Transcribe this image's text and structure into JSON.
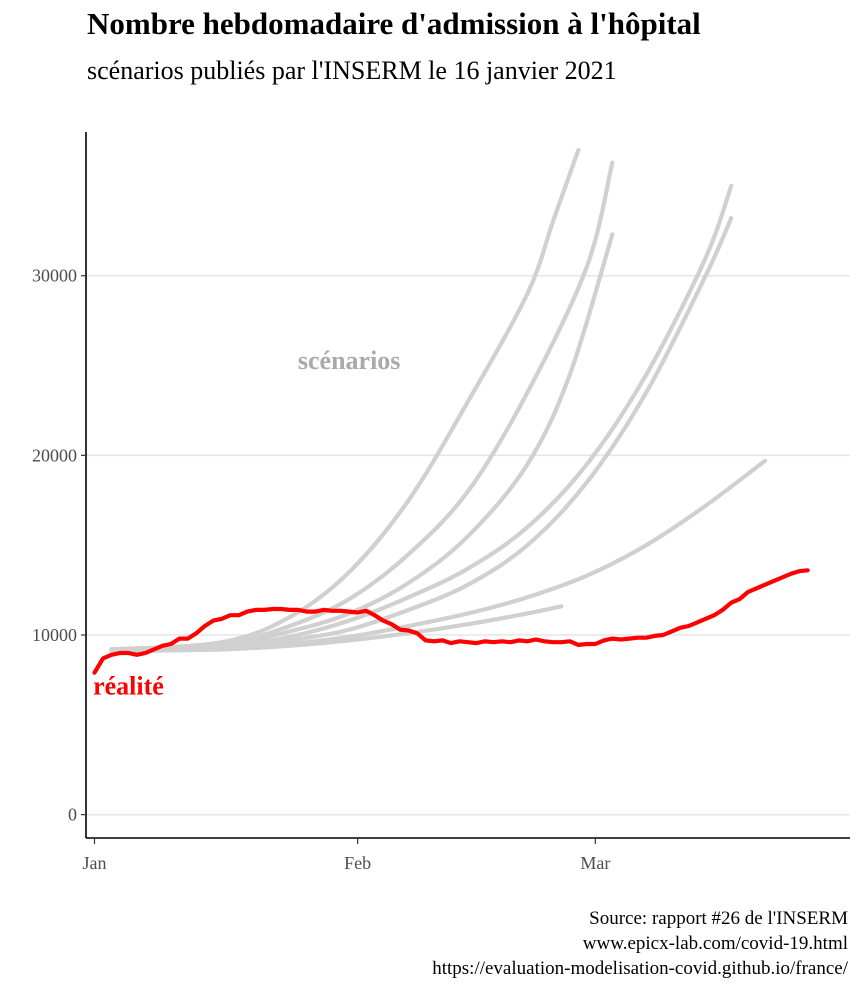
{
  "header": {
    "title": "Nombre hebdomadaire d'admission à l'hôpital",
    "subtitle": "scénarios publiés par l'INSERM le 16 janvier 2021"
  },
  "caption": {
    "line1": "Source: rapport #26 de l'INSERM",
    "line2": "www.epicx-lab.com/covid-19.html",
    "line3": "https://evaluation-modelisation-covid.github.io/france/"
  },
  "colors": {
    "scenario": "#d0d0d0",
    "reality": "#ff0000",
    "scenario_label": "#aaaaaa",
    "grid": "#e6e6e6"
  },
  "chart_data": {
    "type": "line",
    "title": "Nombre hebdomadaire d'admission à l'hôpital",
    "subtitle": "scénarios publiés par l'INSERM le 16 janvier 2021",
    "xlabel": "",
    "ylabel": "",
    "x_unit": "day",
    "xlim": [
      "2020-12-31",
      "2021-03-31"
    ],
    "ylim": [
      -1300,
      38000
    ],
    "x_ticks": [
      {
        "date": "2021-01-01",
        "label": "Jan"
      },
      {
        "date": "2021-02-01",
        "label": "Feb"
      },
      {
        "date": "2021-03-01",
        "label": "Mar"
      }
    ],
    "y_ticks": [
      {
        "value": 0,
        "label": "0"
      },
      {
        "value": 10000,
        "label": "10000"
      },
      {
        "value": 20000,
        "label": "20000"
      },
      {
        "value": 30000,
        "label": "30000"
      }
    ],
    "grid": "horizontal",
    "annotations": [
      {
        "text": "scénarios",
        "date": "2021-01-31",
        "y": 24800
      },
      {
        "text": "réalité",
        "date": "2021-01-05",
        "y": 6700
      }
    ],
    "series": [
      {
        "name": "scénarios",
        "values": [
          [
            "2021-01-03",
            9200
          ],
          [
            "2021-01-16",
            9600
          ],
          [
            "2021-01-24",
            11000
          ],
          [
            "2021-01-31",
            13500
          ],
          [
            "2021-02-07",
            17500
          ],
          [
            "2021-02-14",
            23000
          ],
          [
            "2021-02-21",
            29000
          ],
          [
            "2021-02-24",
            33000
          ],
          [
            "2021-02-27",
            37000
          ]
        ]
      },
      {
        "name": "scénarios",
        "values": [
          [
            "2021-01-03",
            9200
          ],
          [
            "2021-01-16",
            9500
          ],
          [
            "2021-01-24",
            10500
          ],
          [
            "2021-01-31",
            12000
          ],
          [
            "2021-02-07",
            14500
          ],
          [
            "2021-02-14",
            18000
          ],
          [
            "2021-02-21",
            23500
          ],
          [
            "2021-02-28",
            30500
          ],
          [
            "2021-03-03",
            36300
          ]
        ]
      },
      {
        "name": "scénarios",
        "values": [
          [
            "2021-01-03",
            9200
          ],
          [
            "2021-01-16",
            9400
          ],
          [
            "2021-01-24",
            10200
          ],
          [
            "2021-01-31",
            11200
          ],
          [
            "2021-02-07",
            12900
          ],
          [
            "2021-02-14",
            15500
          ],
          [
            "2021-02-21",
            19500
          ],
          [
            "2021-02-26",
            24500
          ],
          [
            "2021-03-03",
            32300
          ]
        ]
      },
      {
        "name": "scénarios",
        "values": [
          [
            "2021-01-03",
            9200
          ],
          [
            "2021-01-16",
            9300
          ],
          [
            "2021-01-24",
            9900
          ],
          [
            "2021-01-31",
            10800
          ],
          [
            "2021-02-07",
            12100
          ],
          [
            "2021-02-14",
            13700
          ],
          [
            "2021-02-21",
            16000
          ],
          [
            "2021-02-28",
            19500
          ],
          [
            "2021-03-07",
            24500
          ],
          [
            "2021-03-14",
            31000
          ],
          [
            "2021-03-17",
            35000
          ]
        ]
      },
      {
        "name": "scénarios",
        "values": [
          [
            "2021-01-03",
            9200
          ],
          [
            "2021-01-16",
            9250
          ],
          [
            "2021-01-24",
            9700
          ],
          [
            "2021-01-31",
            10300
          ],
          [
            "2021-02-07",
            11400
          ],
          [
            "2021-02-14",
            12800
          ],
          [
            "2021-02-21",
            15000
          ],
          [
            "2021-02-28",
            18500
          ],
          [
            "2021-03-07",
            23500
          ],
          [
            "2021-03-14",
            30000
          ],
          [
            "2021-03-17",
            33200
          ]
        ]
      },
      {
        "name": "scénarios",
        "values": [
          [
            "2021-01-03",
            9200
          ],
          [
            "2021-01-16",
            9200
          ],
          [
            "2021-01-24",
            9500
          ],
          [
            "2021-01-31",
            9900
          ],
          [
            "2021-02-07",
            10500
          ],
          [
            "2021-02-14",
            11200
          ],
          [
            "2021-02-21",
            12100
          ],
          [
            "2021-02-28",
            13300
          ],
          [
            "2021-03-07",
            15000
          ],
          [
            "2021-03-14",
            17200
          ],
          [
            "2021-03-21",
            19700
          ]
        ]
      },
      {
        "name": "scénarios",
        "values": [
          [
            "2021-01-03",
            9100
          ],
          [
            "2021-01-16",
            9200
          ],
          [
            "2021-01-24",
            9400
          ],
          [
            "2021-01-31",
            9700
          ],
          [
            "2021-02-07",
            10100
          ],
          [
            "2021-02-14",
            10600
          ],
          [
            "2021-02-21",
            11200
          ],
          [
            "2021-02-25",
            11600
          ]
        ]
      },
      {
        "name": "réalité",
        "values": [
          [
            "2021-01-01",
            7900
          ],
          [
            "2021-01-02",
            8700
          ],
          [
            "2021-01-03",
            8900
          ],
          [
            "2021-01-04",
            9000
          ],
          [
            "2021-01-05",
            9000
          ],
          [
            "2021-01-06",
            8900
          ],
          [
            "2021-01-07",
            9000
          ],
          [
            "2021-01-08",
            9200
          ],
          [
            "2021-01-09",
            9400
          ],
          [
            "2021-01-10",
            9500
          ],
          [
            "2021-01-11",
            9800
          ],
          [
            "2021-01-12",
            9800
          ],
          [
            "2021-01-13",
            10100
          ],
          [
            "2021-01-14",
            10500
          ],
          [
            "2021-01-15",
            10800
          ],
          [
            "2021-01-16",
            10900
          ],
          [
            "2021-01-17",
            11100
          ],
          [
            "2021-01-18",
            11100
          ],
          [
            "2021-01-19",
            11300
          ],
          [
            "2021-01-20",
            11400
          ],
          [
            "2021-01-21",
            11400
          ],
          [
            "2021-01-22",
            11450
          ],
          [
            "2021-01-23",
            11450
          ],
          [
            "2021-01-24",
            11400
          ],
          [
            "2021-01-25",
            11400
          ],
          [
            "2021-01-26",
            11300
          ],
          [
            "2021-01-27",
            11300
          ],
          [
            "2021-01-28",
            11400
          ],
          [
            "2021-01-29",
            11350
          ],
          [
            "2021-01-30",
            11350
          ],
          [
            "2021-01-31",
            11300
          ],
          [
            "2021-02-01",
            11250
          ],
          [
            "2021-02-02",
            11350
          ],
          [
            "2021-02-03",
            11100
          ],
          [
            "2021-02-04",
            10800
          ],
          [
            "2021-02-05",
            10600
          ],
          [
            "2021-02-06",
            10300
          ],
          [
            "2021-02-07",
            10250
          ],
          [
            "2021-02-08",
            10100
          ],
          [
            "2021-02-09",
            9700
          ],
          [
            "2021-02-10",
            9650
          ],
          [
            "2021-02-11",
            9700
          ],
          [
            "2021-02-12",
            9550
          ],
          [
            "2021-02-13",
            9650
          ],
          [
            "2021-02-14",
            9600
          ],
          [
            "2021-02-15",
            9550
          ],
          [
            "2021-02-16",
            9650
          ],
          [
            "2021-02-17",
            9600
          ],
          [
            "2021-02-18",
            9650
          ],
          [
            "2021-02-19",
            9600
          ],
          [
            "2021-02-20",
            9700
          ],
          [
            "2021-02-21",
            9650
          ],
          [
            "2021-02-22",
            9750
          ],
          [
            "2021-02-23",
            9650
          ],
          [
            "2021-02-24",
            9600
          ],
          [
            "2021-02-25",
            9600
          ],
          [
            "2021-02-26",
            9650
          ],
          [
            "2021-02-27",
            9450
          ],
          [
            "2021-02-28",
            9500
          ],
          [
            "2021-03-01",
            9500
          ],
          [
            "2021-03-02",
            9700
          ],
          [
            "2021-03-03",
            9800
          ],
          [
            "2021-03-04",
            9750
          ],
          [
            "2021-03-05",
            9800
          ],
          [
            "2021-03-06",
            9850
          ],
          [
            "2021-03-07",
            9850
          ],
          [
            "2021-03-08",
            9950
          ],
          [
            "2021-03-09",
            10000
          ],
          [
            "2021-03-10",
            10200
          ],
          [
            "2021-03-11",
            10400
          ],
          [
            "2021-03-12",
            10500
          ],
          [
            "2021-03-13",
            10700
          ],
          [
            "2021-03-14",
            10900
          ],
          [
            "2021-03-15",
            11100
          ],
          [
            "2021-03-16",
            11400
          ],
          [
            "2021-03-17",
            11800
          ],
          [
            "2021-03-18",
            12000
          ],
          [
            "2021-03-19",
            12400
          ],
          [
            "2021-03-20",
            12600
          ],
          [
            "2021-03-21",
            12800
          ],
          [
            "2021-03-22",
            13000
          ],
          [
            "2021-03-23",
            13200
          ],
          [
            "2021-03-24",
            13400
          ],
          [
            "2021-03-25",
            13550
          ],
          [
            "2021-03-26",
            13600
          ]
        ]
      }
    ]
  }
}
